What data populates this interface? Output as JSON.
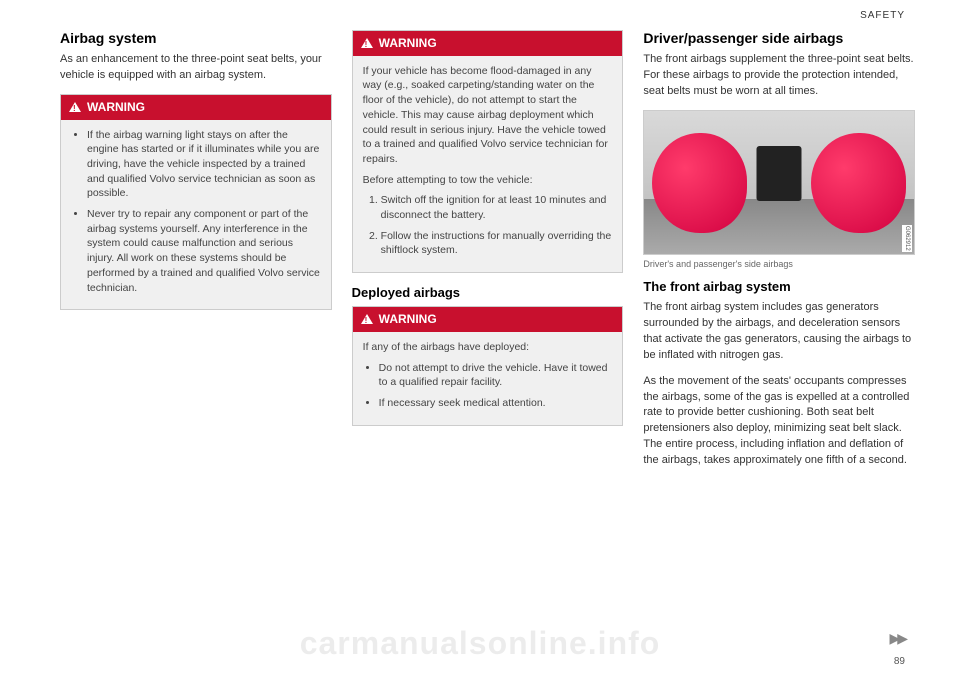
{
  "header": {
    "section": "SAFETY",
    "page_number": "89"
  },
  "watermark": "carmanualsonline.info",
  "continuation": "▶▶",
  "col1": {
    "heading": "Airbag system",
    "intro": "As an enhancement to the three-point seat belts, your vehicle is equipped with an airbag system.",
    "warning1": {
      "label": "WARNING",
      "items": [
        "If the airbag warning light stays on after the engine has started or if it illuminates while you are driving, have the vehicle inspected by a trained and qualified Volvo service technician as soon as possible.",
        "Never try to repair any component or part of the airbag systems yourself. Any interference in the system could cause malfunction and serious injury. All work on these systems should be performed by a trained and qualified Volvo service technician."
      ]
    }
  },
  "col2": {
    "warning2": {
      "label": "WARNING",
      "p1": "If your vehicle has become flood-damaged in any way (e.g., soaked carpeting/standing water on the floor of the vehicle), do not attempt to start the vehicle. This may cause airbag deployment which could result in serious injury. Have the vehicle towed to a trained and qualified Volvo service technician for repairs.",
      "p2": "Before attempting to tow the vehicle:",
      "ol": [
        "Switch off the ignition for at least 10 minutes and disconnect the battery.",
        "Follow the instructions for manually overriding the shiftlock system."
      ]
    },
    "subheading": "Deployed airbags",
    "warning3": {
      "label": "WARNING",
      "p1": "If any of the airbags have deployed:",
      "items": [
        "Do not attempt to drive the vehicle. Have it towed to a qualified repair facility.",
        "If necessary seek medical attention."
      ]
    }
  },
  "col3": {
    "heading": "Driver/passenger side airbags",
    "intro": "The front airbags supplement the three-point seat belts. For these airbags to provide the protection intended, seat belts must be worn at all times.",
    "figure_caption": "Driver's and passenger's side airbags",
    "figure_label": "G062912",
    "subheading": "The front airbag system",
    "p1": "The front airbag system includes gas generators surrounded by the airbags, and deceleration sensors that activate the gas generators, causing the airbags to be inflated with nitrogen gas.",
    "p2": "As the movement of the seats' occupants compresses the airbags, some of the gas is expelled at a controlled rate to provide better cushioning. Both seat belt pretensioners also deploy, minimizing seat belt slack. The entire process, including inflation and deflation of the airbags, takes approximately one fifth of a second."
  },
  "colors": {
    "warning_bg": "#c8102e",
    "warning_body_bg": "#f0f0f0",
    "airbag_light": "#ff3b6b",
    "airbag_dark": "#d1003f"
  }
}
